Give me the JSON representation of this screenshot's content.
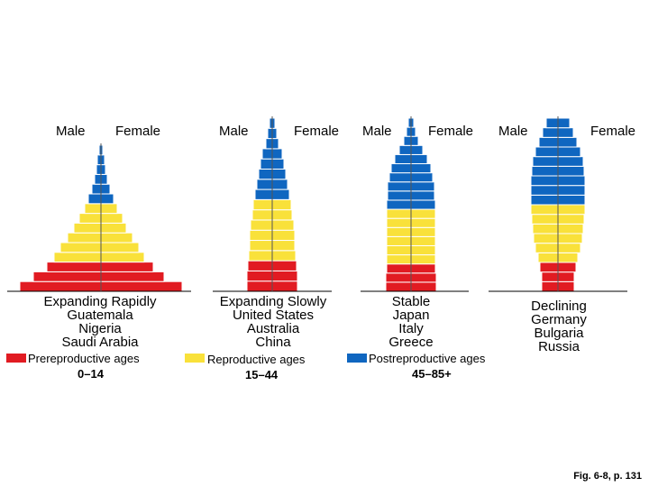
{
  "colors": {
    "prereproductive": "#e11b22",
    "reproductive": "#f9e13a",
    "postreproductive": "#0f66c0",
    "axis": "#000000"
  },
  "chart_data": [
    {
      "type": "bar",
      "title": [
        "Expanding Rapidly",
        "Guatemala",
        "Nigeria",
        "Saudi Arabia"
      ],
      "male_label": "Male",
      "female_label": "Female",
      "male": [
        90,
        75,
        60,
        52,
        45,
        37,
        30,
        24,
        18,
        14,
        10,
        7,
        5,
        4,
        2
      ],
      "female": [
        90,
        70,
        58,
        48,
        42,
        35,
        28,
        24,
        18,
        14,
        10,
        7,
        5,
        4,
        2
      ],
      "groups": [
        "pre",
        "pre",
        "pre",
        "rep",
        "rep",
        "rep",
        "rep",
        "rep",
        "rep",
        "post",
        "post",
        "post",
        "post",
        "post",
        "post"
      ]
    },
    {
      "type": "bar",
      "title": [
        "Expanding Slowly",
        "United States",
        "Australia",
        "China"
      ],
      "male_label": "Male",
      "female_label": "Female",
      "male": [
        28,
        28,
        27,
        26,
        25,
        25,
        24,
        22,
        21,
        19,
        17,
        15,
        13,
        11,
        7,
        5,
        3
      ],
      "female": [
        28,
        28,
        27,
        26,
        25,
        25,
        24,
        22,
        21,
        19,
        17,
        15,
        13,
        11,
        7,
        5,
        3
      ],
      "groups": [
        "pre",
        "pre",
        "pre",
        "rep",
        "rep",
        "rep",
        "rep",
        "rep",
        "rep",
        "post",
        "post",
        "post",
        "post",
        "post",
        "post",
        "post",
        "post"
      ]
    },
    {
      "type": "bar",
      "title": [
        "Stable",
        "Japan",
        "Italy",
        "Greece"
      ],
      "male_label": "Male",
      "female_label": "Female",
      "male": [
        28,
        28,
        27,
        27,
        27,
        27,
        27,
        27,
        27,
        27,
        26,
        26,
        24,
        22,
        18,
        13,
        8,
        5,
        3
      ],
      "female": [
        28,
        28,
        27,
        27,
        27,
        27,
        27,
        27,
        27,
        27,
        26,
        26,
        24,
        22,
        18,
        13,
        8,
        5,
        3
      ],
      "groups": [
        "pre",
        "pre",
        "pre",
        "rep",
        "rep",
        "rep",
        "rep",
        "rep",
        "rep",
        "post",
        "post",
        "post",
        "post",
        "post",
        "post",
        "post",
        "post",
        "post",
        "post"
      ]
    },
    {
      "type": "bar",
      "title": [
        "Declining",
        "Germany",
        "Bulgaria",
        "Russia"
      ],
      "male_label": "Male",
      "female_label": "Female",
      "male": [
        18,
        18,
        20,
        22,
        25,
        27,
        28,
        29,
        30,
        30,
        30,
        30,
        29,
        28,
        25,
        21,
        17,
        13
      ],
      "female": [
        18,
        18,
        20,
        22,
        25,
        27,
        28,
        29,
        30,
        30,
        30,
        30,
        29,
        28,
        25,
        21,
        17,
        13
      ],
      "groups": [
        "pre",
        "pre",
        "pre",
        "rep",
        "rep",
        "rep",
        "rep",
        "rep",
        "rep",
        "post",
        "post",
        "post",
        "post",
        "post",
        "post",
        "post",
        "post",
        "post"
      ]
    }
  ],
  "legend": [
    {
      "key": "prereproductive",
      "label": "Prereproductive ages",
      "range": "0–14"
    },
    {
      "key": "reproductive",
      "label": "Reproductive ages",
      "range": "15–44"
    },
    {
      "key": "postreproductive",
      "label": "Postreproductive ages",
      "range": "45–85+"
    }
  ],
  "footer": "Fig. 6-8, p. 131"
}
